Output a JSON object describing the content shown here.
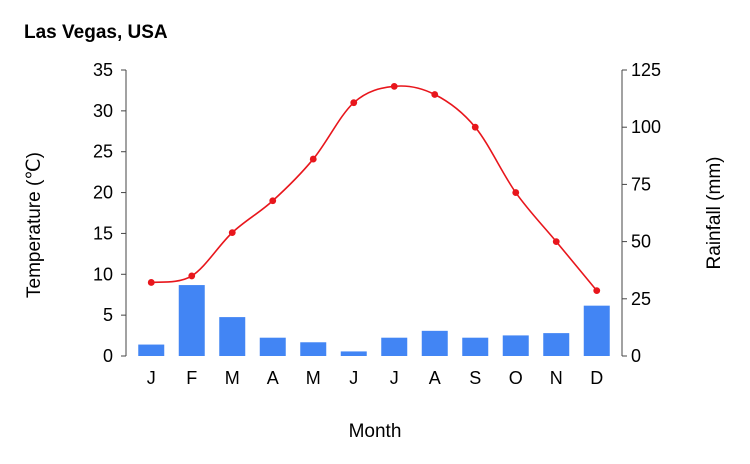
{
  "chart_data": {
    "type": "bar+line",
    "title": "Las Vegas, USA",
    "xlabel": "Month",
    "categories": [
      "J",
      "F",
      "M",
      "A",
      "M",
      "J",
      "J",
      "A",
      "S",
      "O",
      "N",
      "D"
    ],
    "y_left": {
      "label": "Temperature (℃)",
      "range": [
        0,
        35
      ],
      "ticks": [
        0,
        5,
        10,
        15,
        20,
        25,
        30,
        35
      ]
    },
    "y_right": {
      "label": "Rainfall (mm)",
      "range": [
        0,
        125
      ],
      "ticks": [
        0,
        25,
        50,
        75,
        100,
        125
      ]
    },
    "series": [
      {
        "name": "Temperature",
        "type": "line",
        "axis": "left",
        "color": "#e8161c",
        "values": [
          9,
          9.8,
          15.1,
          19,
          24.1,
          31,
          33,
          32,
          28,
          20,
          14,
          8
        ]
      },
      {
        "name": "Rainfall",
        "type": "bar",
        "axis": "right",
        "color": "#4285f4",
        "values": [
          5,
          31,
          17,
          8,
          6,
          2,
          8,
          11,
          8,
          9,
          10,
          22
        ]
      }
    ],
    "grid": false,
    "legend": "none"
  }
}
